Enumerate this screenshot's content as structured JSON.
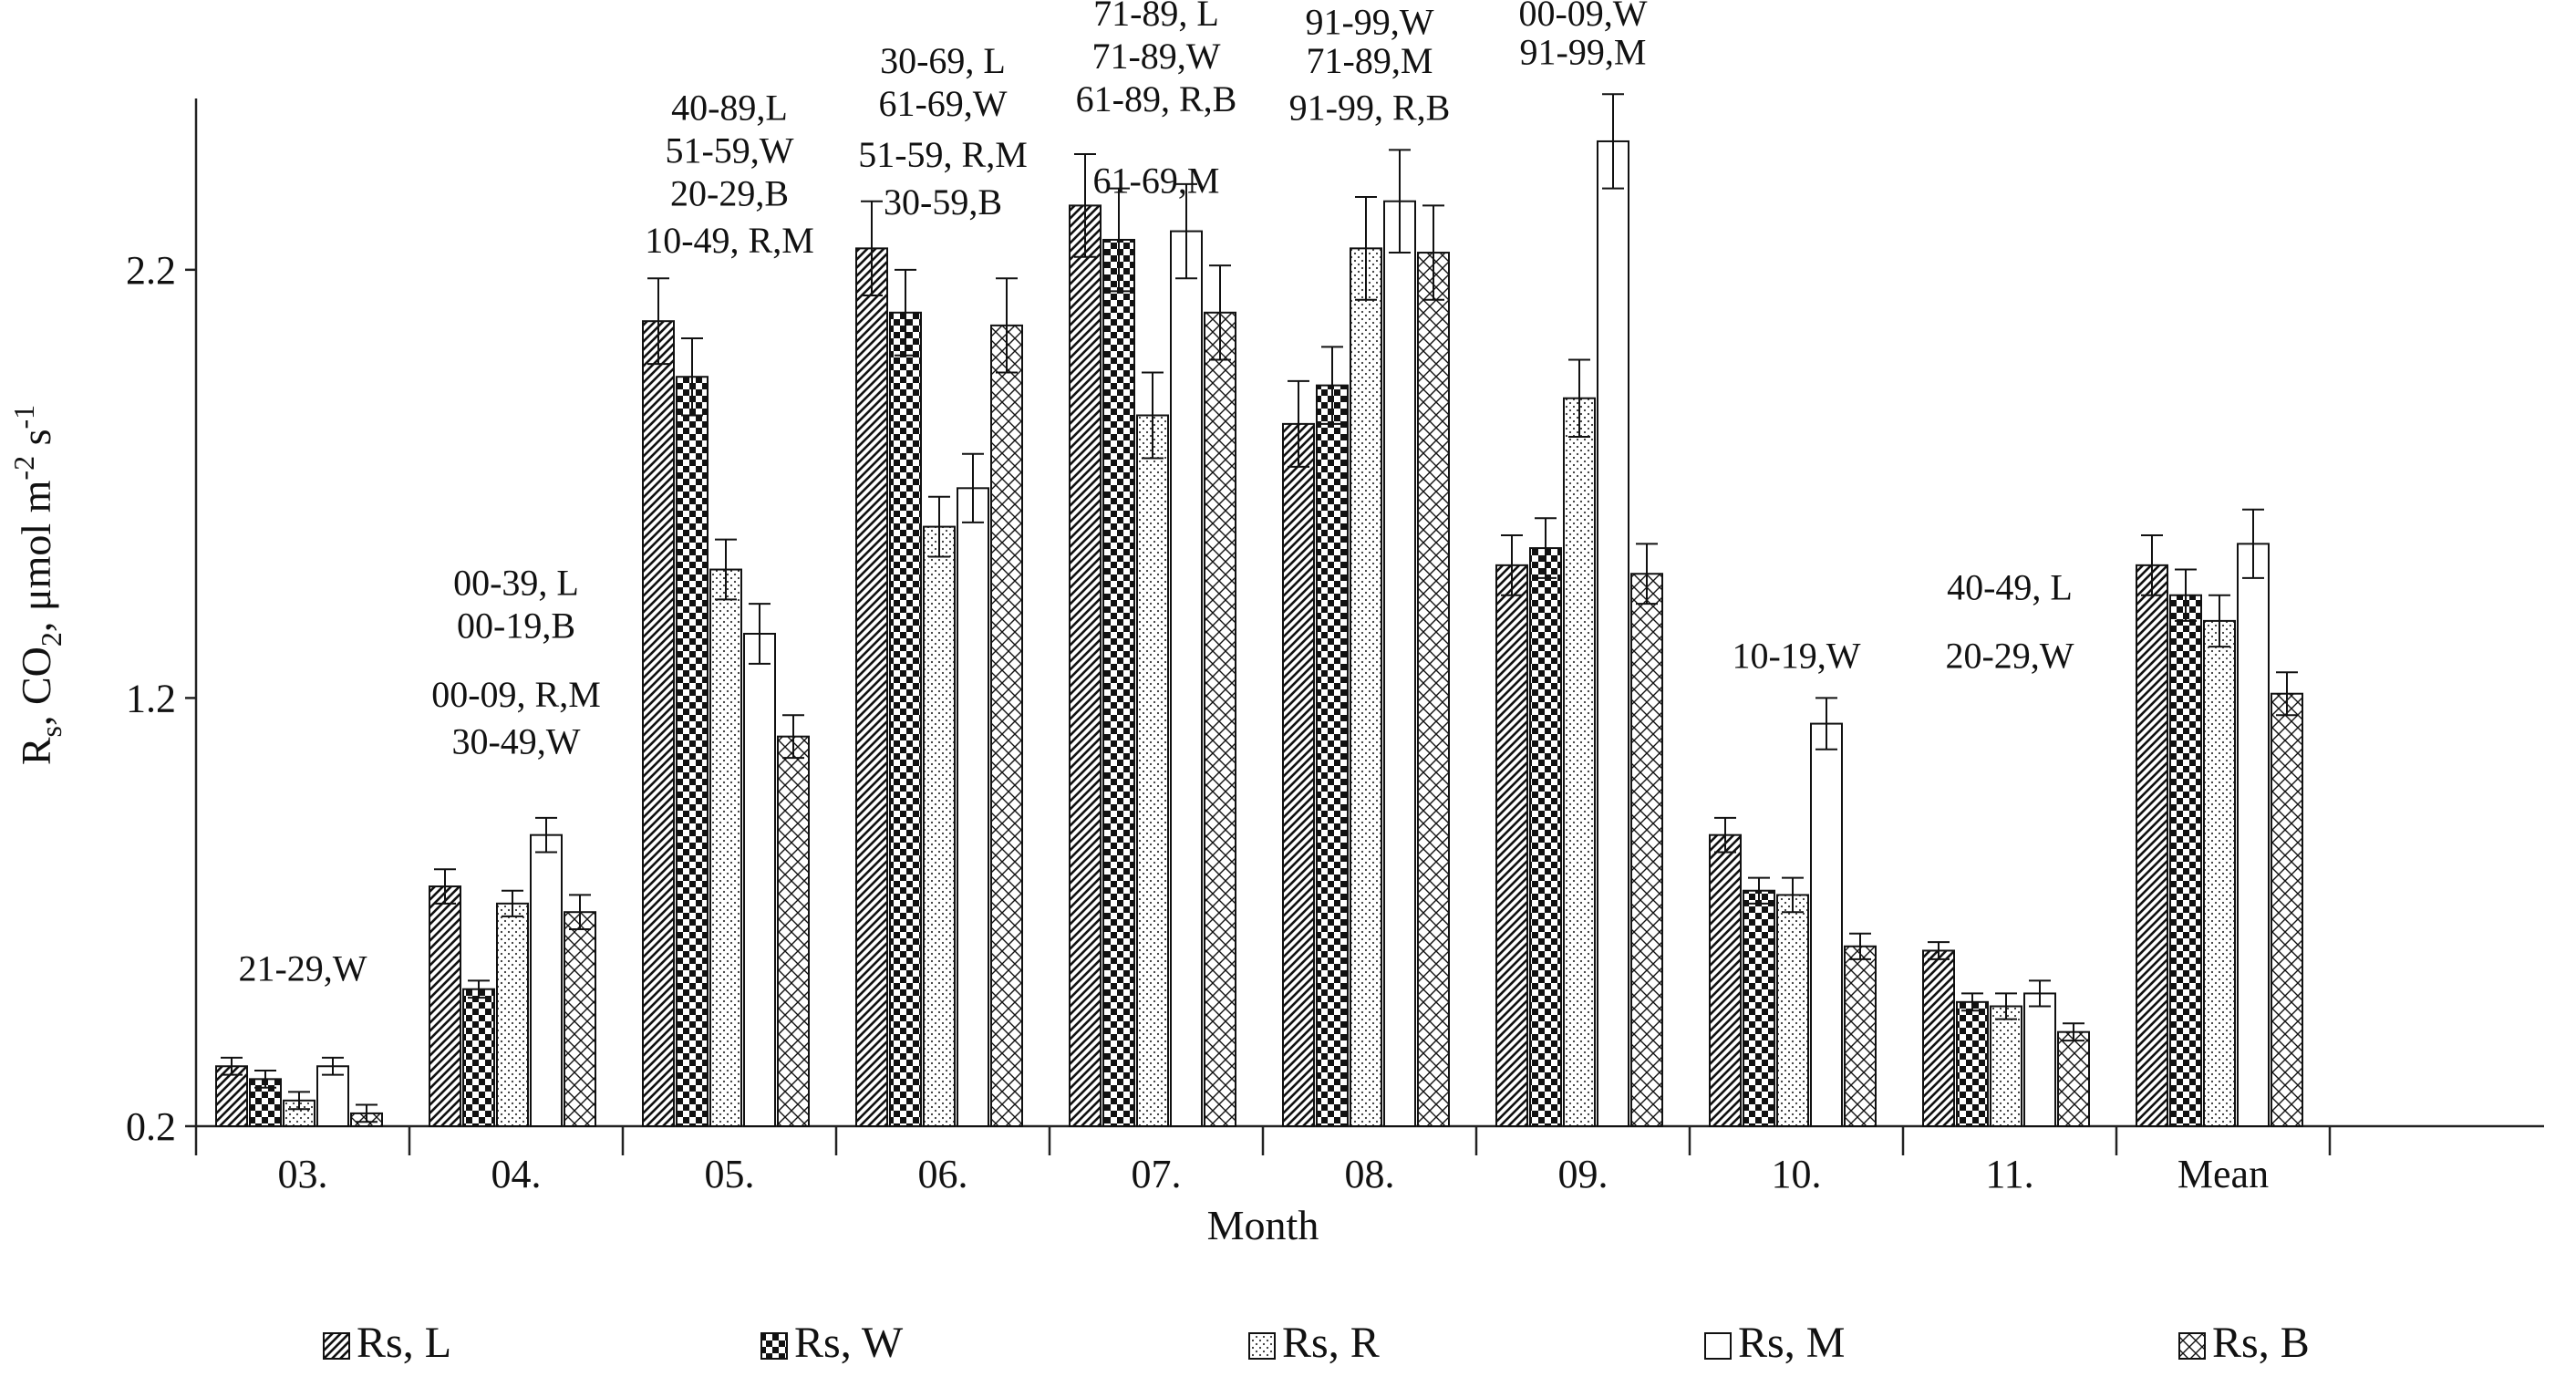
{
  "chart_data": {
    "type": "bar",
    "xlabel": "Month",
    "ylabel": "R_s, CO_2, μmol m^-2 s^-1",
    "ylabel_parts": {
      "r": "R",
      "r_sub": "s",
      "co": ", CO",
      "co_sub": "2",
      "unit": ", μmol m",
      "exp1": "-2",
      "mid": " s",
      "exp2": "-1"
    },
    "ylim": [
      0.2,
      2.6
    ],
    "yticks": [
      "0.2",
      "1.2",
      "2.2"
    ],
    "ytick_values": [
      0.2,
      1.2,
      2.2
    ],
    "categories": [
      "03.",
      "04.",
      "05.",
      "06.",
      "07.",
      "08.",
      "09.",
      "10.",
      "11.",
      "Mean"
    ],
    "series": [
      {
        "name": "Rs, L",
        "pattern": "diagonal",
        "values": [
          0.34,
          0.76,
          2.08,
          2.25,
          2.35,
          1.84,
          1.51,
          0.88,
          0.61,
          1.51
        ],
        "errors": [
          0.02,
          0.04,
          0.1,
          0.11,
          0.12,
          0.1,
          0.07,
          0.04,
          0.02,
          0.07
        ]
      },
      {
        "name": "Rs, W",
        "pattern": "checker",
        "values": [
          0.31,
          0.52,
          1.95,
          2.1,
          2.27,
          1.93,
          1.55,
          0.75,
          0.49,
          1.44
        ],
        "errors": [
          0.02,
          0.02,
          0.09,
          0.1,
          0.12,
          0.09,
          0.07,
          0.03,
          0.02,
          0.06
        ]
      },
      {
        "name": "Rs, R",
        "pattern": "dotted",
        "values": [
          0.26,
          0.72,
          1.5,
          1.6,
          1.86,
          2.25,
          1.9,
          0.74,
          0.48,
          1.38
        ],
        "errors": [
          0.02,
          0.03,
          0.07,
          0.07,
          0.1,
          0.12,
          0.09,
          0.04,
          0.03,
          0.06
        ]
      },
      {
        "name": "Rs, M",
        "pattern": "plain",
        "values": [
          0.34,
          0.88,
          1.35,
          1.69,
          2.29,
          2.36,
          2.5,
          1.14,
          0.51,
          1.56
        ],
        "errors": [
          0.02,
          0.04,
          0.07,
          0.08,
          0.11,
          0.12,
          0.11,
          0.06,
          0.03,
          0.08
        ]
      },
      {
        "name": "Rs, B",
        "pattern": "crosshatch",
        "values": [
          0.23,
          0.7,
          1.11,
          2.07,
          2.1,
          2.24,
          1.49,
          0.62,
          0.42,
          1.21
        ],
        "errors": [
          0.02,
          0.04,
          0.05,
          0.11,
          0.11,
          0.11,
          0.07,
          0.03,
          0.02,
          0.05
        ]
      }
    ],
    "annotations": [
      {
        "text": "21-29,W",
        "month": "03.",
        "value": 0.54
      },
      {
        "text": "00-39, L",
        "month": "04.",
        "value": 1.44
      },
      {
        "text": "00-19,B",
        "month": "04.",
        "value": 1.34
      },
      {
        "text": "00-09, R,M",
        "month": "04.",
        "value": 1.18
      },
      {
        "text": "30-49,W",
        "month": "04.",
        "value": 1.07
      },
      {
        "text": "40-89,L",
        "month": "05.",
        "value": 2.55
      },
      {
        "text": "51-59,W",
        "month": "05.",
        "value": 2.45
      },
      {
        "text": "20-29,B",
        "month": "05.",
        "value": 2.35
      },
      {
        "text": "10-49, R,M",
        "month": "05.",
        "value": 2.24
      },
      {
        "text": "30-69, L",
        "month": "06.",
        "value": 2.66
      },
      {
        "text": "61-69,W",
        "month": "06.",
        "value": 2.56
      },
      {
        "text": "51-59, R,M",
        "month": "06.",
        "value": 2.44
      },
      {
        "text": "30-59,B",
        "month": "06.",
        "value": 2.33
      },
      {
        "text": "71-89, L",
        "month": "07.",
        "value": 2.77
      },
      {
        "text": "71-89,W",
        "month": "07.",
        "value": 2.67
      },
      {
        "text": "61-89, R,B",
        "month": "07.",
        "value": 2.57
      },
      {
        "text": "61-69,M",
        "month": "07.",
        "value": 2.38
      },
      {
        "text": "91-99,W",
        "month": "08.",
        "value": 2.75
      },
      {
        "text": "71-89,M",
        "month": "08.",
        "value": 2.66
      },
      {
        "text": "91-99, R,B",
        "month": "08.",
        "value": 2.55
      },
      {
        "text": "00-09,W",
        "month": "09.",
        "value": 2.77
      },
      {
        "text": "91-99,M",
        "month": "09.",
        "value": 2.68
      },
      {
        "text": "40-49, L",
        "month": "11.",
        "value": 1.43
      },
      {
        "text": "10-19,W",
        "month": "10.",
        "value": 1.27
      },
      {
        "text": "20-29,W",
        "month": "11.",
        "value": 1.27
      }
    ],
    "legend_position": "bottom",
    "grid": false
  }
}
